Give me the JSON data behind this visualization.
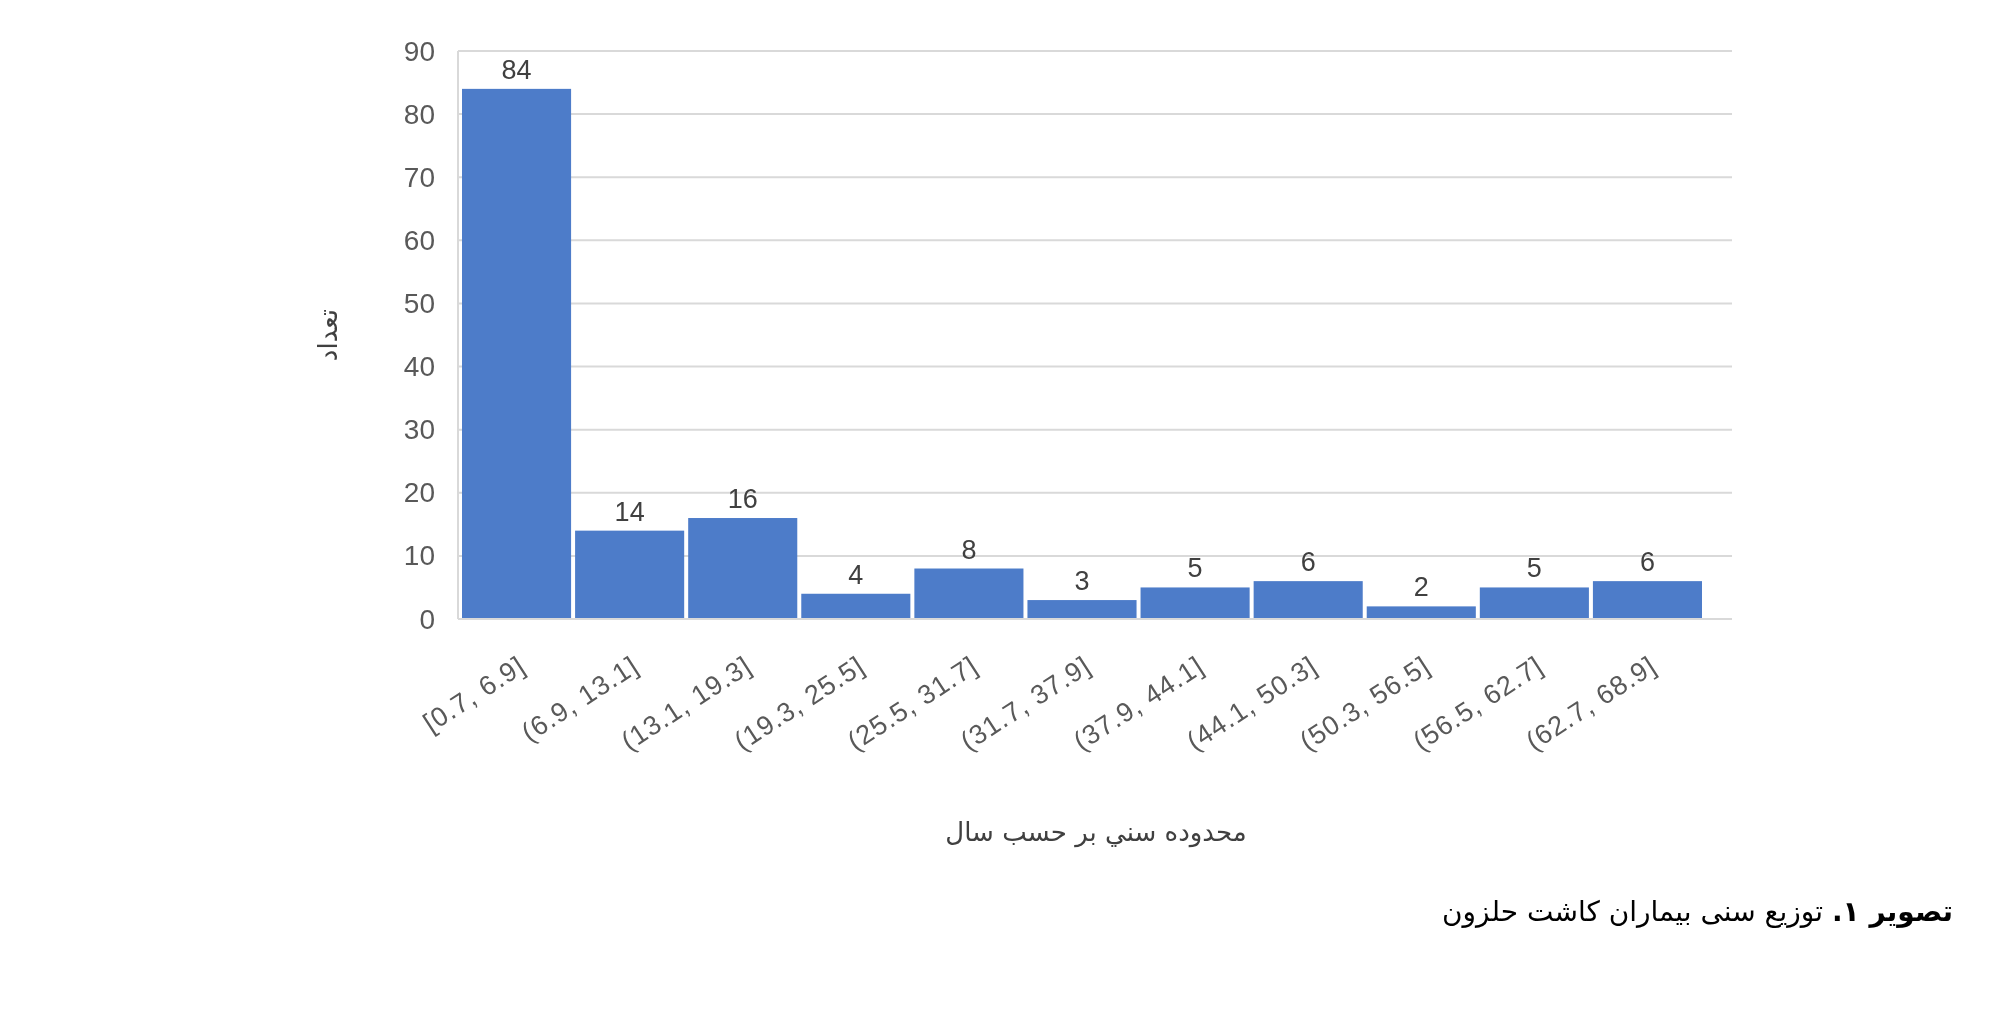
{
  "chart_data": {
    "type": "bar",
    "xlabel": "محدوده سني بر حسب سال",
    "ylabel": "تعداد",
    "categories": [
      "[0.7, 6.9]",
      "(6.9, 13.1]",
      "(13.1, 19.3]",
      "(19.3, 25.5]",
      "(25.5, 31.7]",
      "(31.7, 37.9]",
      "(37.9, 44.1]",
      "(44.1, 50.3]",
      "(50.3, 56.5]",
      "(56.5, 62.7]",
      "(62.7, 68.9]"
    ],
    "values": [
      84,
      14,
      16,
      4,
      8,
      3,
      5,
      6,
      2,
      5,
      6
    ],
    "color": "#4d7cc9",
    "ylim": [
      0,
      90
    ],
    "yticks": [
      0,
      10,
      20,
      30,
      40,
      50,
      60,
      70,
      80,
      90
    ],
    "grid": "y",
    "data_labels": true,
    "annotations": [
      "تصویر ۱. توزیع سنی بیماران کاشت حلزون"
    ]
  }
}
